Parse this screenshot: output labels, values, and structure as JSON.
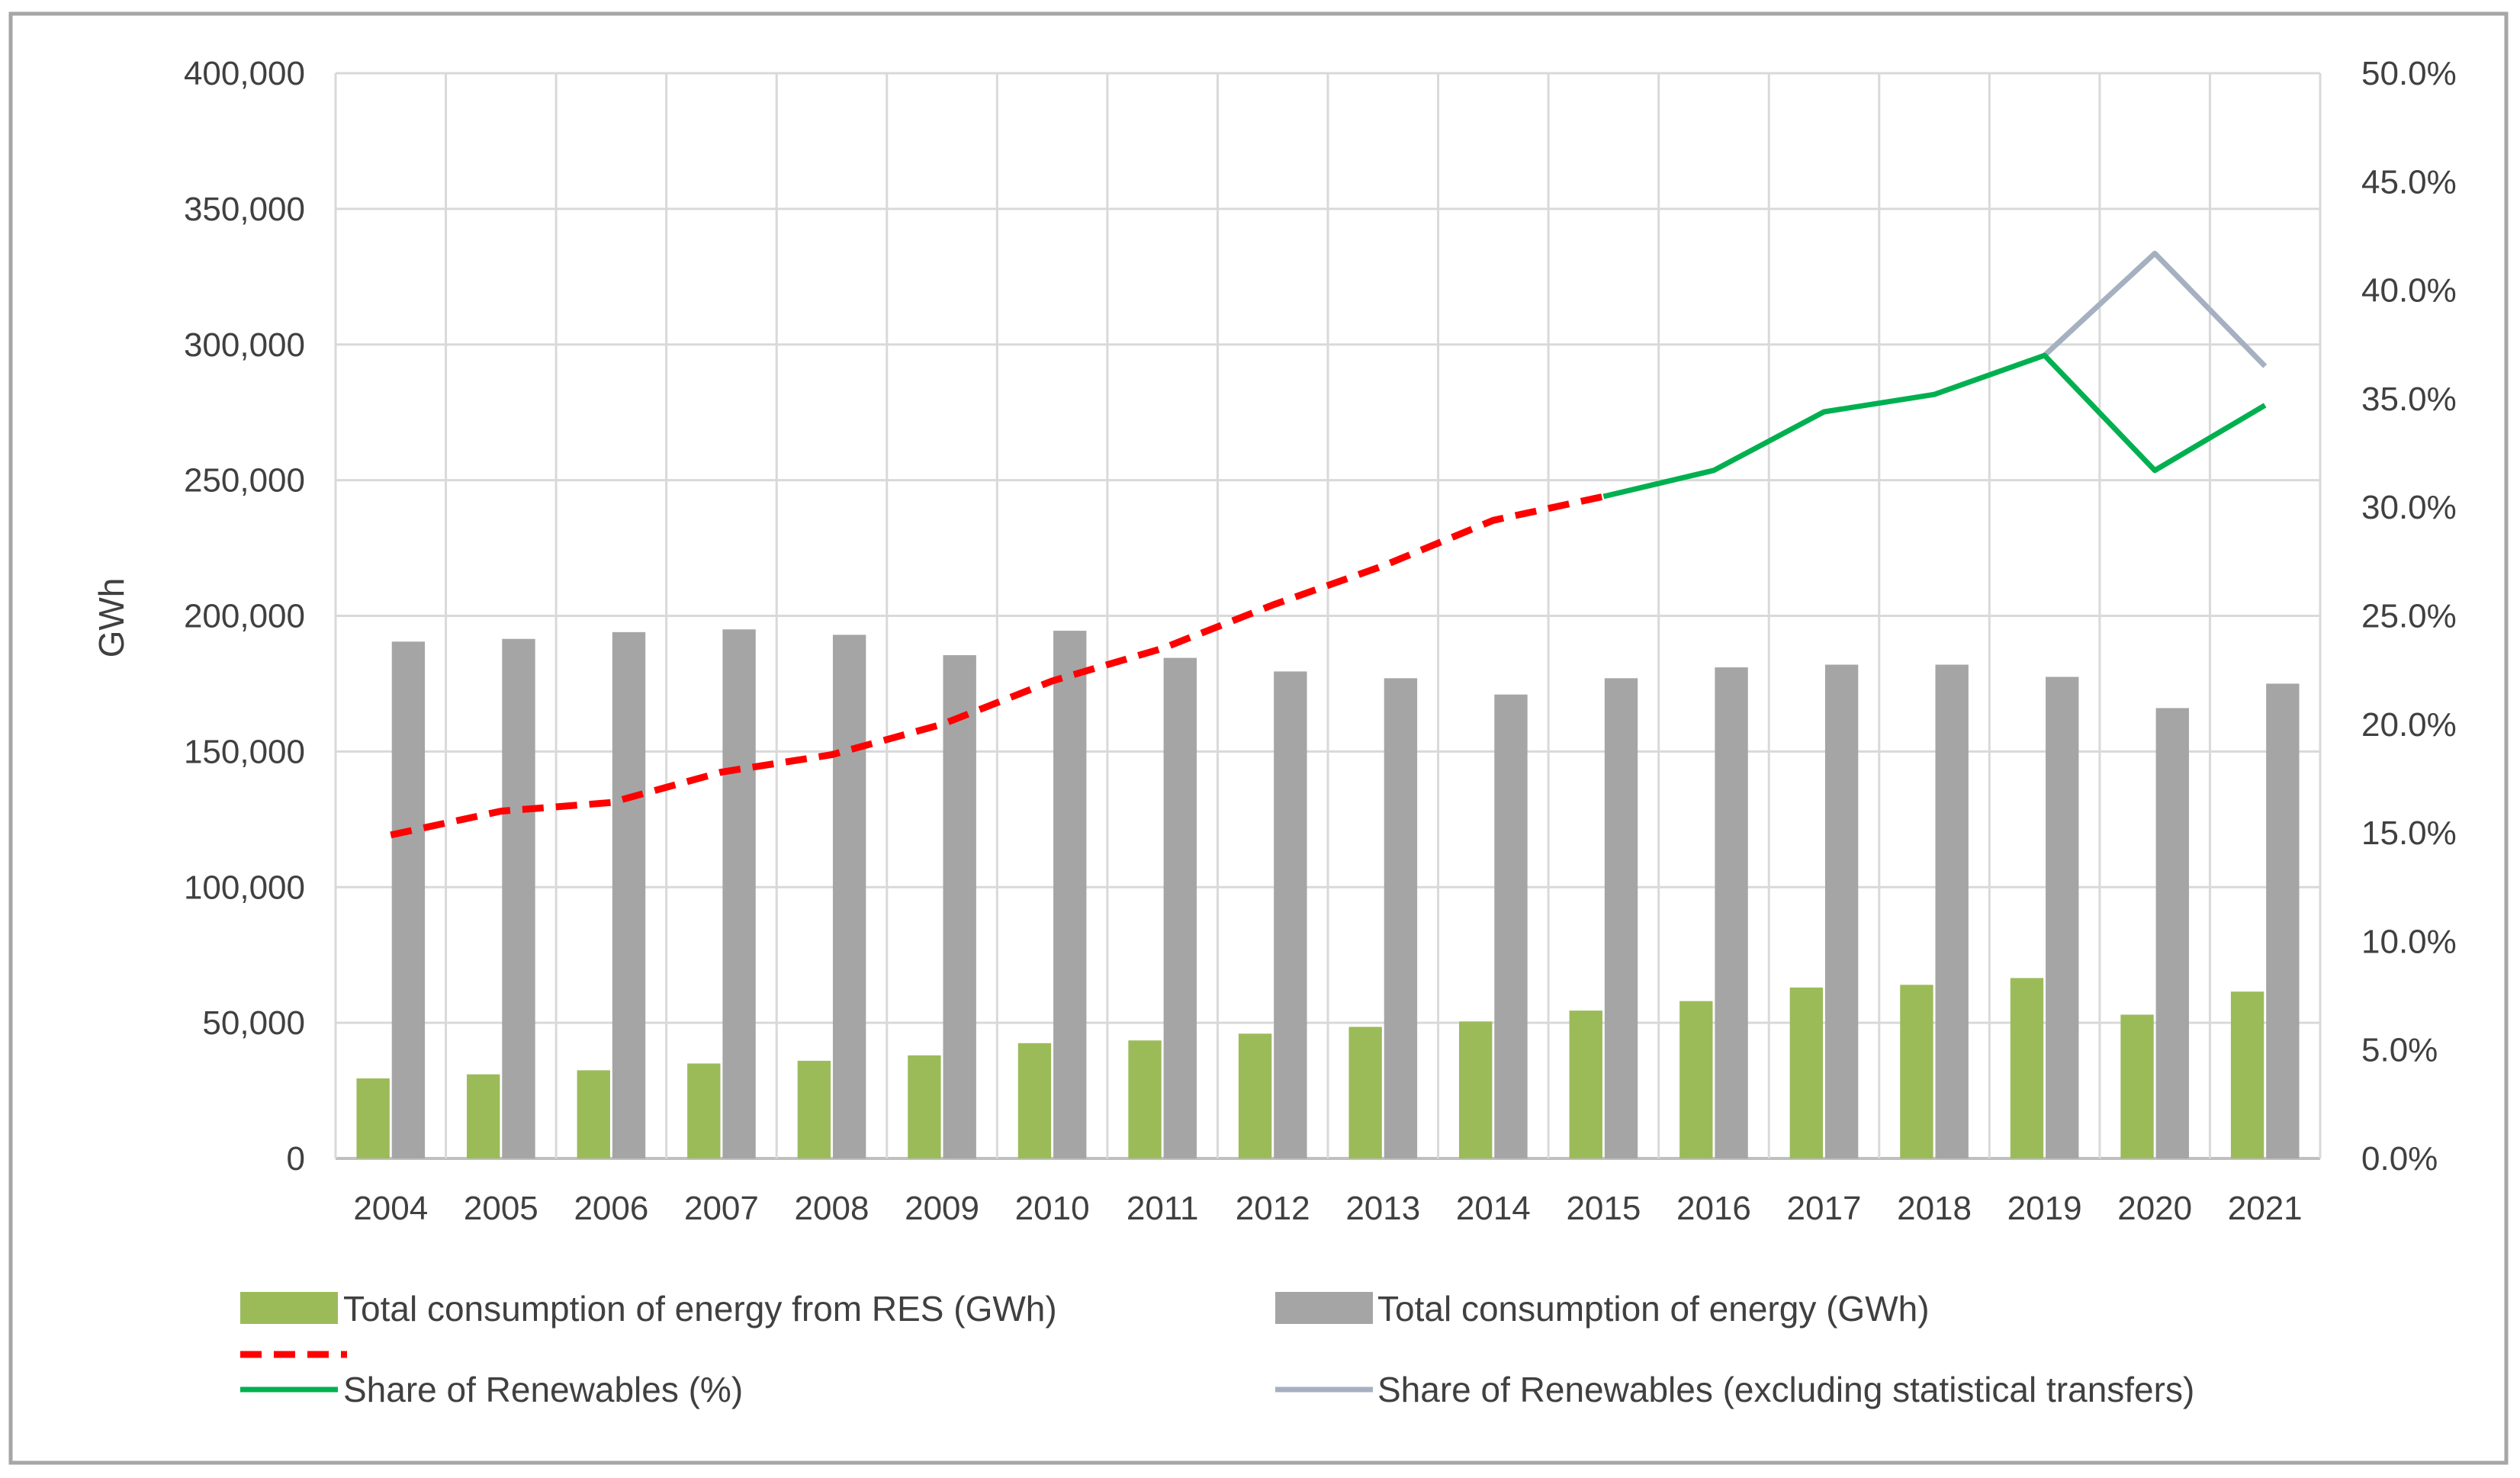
{
  "chart_data": {
    "type": "bar",
    "title": "",
    "categories": [
      "2004",
      "2005",
      "2006",
      "2007",
      "2008",
      "2009",
      "2010",
      "2011",
      "2012",
      "2013",
      "2014",
      "2015",
      "2016",
      "2017",
      "2018",
      "2019",
      "2020",
      "2021"
    ],
    "ylabel": "GWh",
    "ylim": [
      0,
      400000
    ],
    "y_ticks": [
      "0",
      "50,000",
      "100,000",
      "150,000",
      "200,000",
      "250,000",
      "300,000",
      "350,000",
      "400,000"
    ],
    "y2lim": [
      0,
      50
    ],
    "y2_ticks": [
      "0.0%",
      "5.0%",
      "10.0%",
      "15.0%",
      "20.0%",
      "25.0%",
      "30.0%",
      "35.0%",
      "40.0%",
      "45.0%",
      "50.0%"
    ],
    "grid": true,
    "legend_position": "bottom",
    "series": [
      {
        "name": "Total consumption of energy from RES (GWh)",
        "kind": "bar",
        "axis": "left",
        "color": "#9BBB59",
        "values": [
          29500,
          31000,
          32500,
          35000,
          36000,
          38000,
          42500,
          43500,
          46000,
          48500,
          50500,
          54500,
          58000,
          63000,
          64000,
          66500,
          53000,
          61500
        ]
      },
      {
        "name": "Total consumption of energy (GWh)",
        "kind": "bar",
        "axis": "left",
        "color": "#A5A5A5",
        "values": [
          190500,
          191500,
          194000,
          195000,
          193000,
          185500,
          194500,
          184500,
          179500,
          177000,
          171000,
          177000,
          181000,
          182000,
          182000,
          177500,
          166000,
          175000
        ]
      },
      {
        "name": "",
        "kind": "line",
        "style": "dashed",
        "axis": "right",
        "color": "#FF0000",
        "values": [
          14.9,
          16.0,
          16.4,
          17.8,
          18.6,
          20.0,
          22.0,
          23.5,
          25.5,
          27.3,
          29.4,
          30.5,
          null,
          null,
          null,
          null,
          null,
          null
        ]
      },
      {
        "name": "Share of Renewables (%)",
        "kind": "line",
        "axis": "right",
        "color": "#00B050",
        "values": [
          null,
          null,
          null,
          null,
          null,
          null,
          null,
          null,
          null,
          null,
          null,
          30.5,
          31.7,
          34.4,
          35.2,
          37.0,
          31.7,
          34.7
        ]
      },
      {
        "name": "Share of Renewables (excluding statistical transfers)",
        "kind": "line",
        "axis": "right",
        "color": "#A5B0C0",
        "values": [
          null,
          null,
          null,
          null,
          null,
          null,
          null,
          null,
          null,
          null,
          null,
          null,
          null,
          null,
          null,
          37.0,
          41.7,
          36.5
        ]
      }
    ]
  }
}
